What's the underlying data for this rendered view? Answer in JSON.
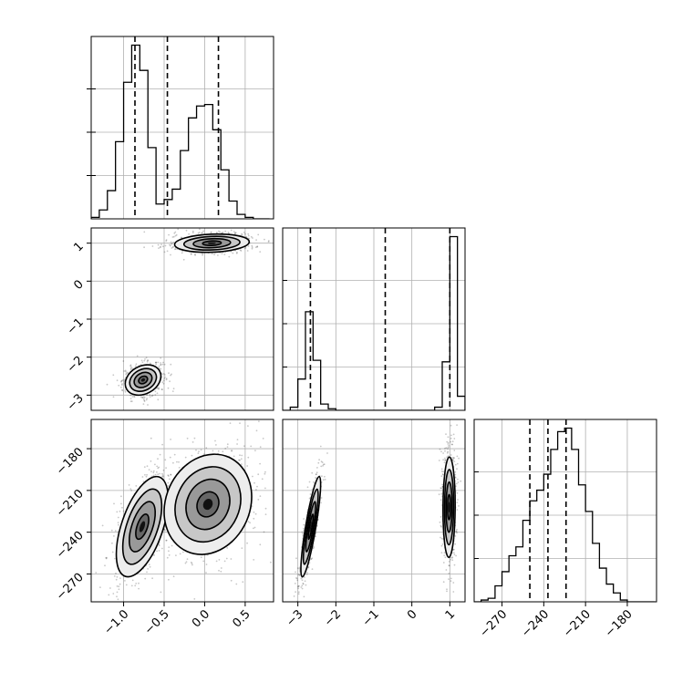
{
  "chart_data": {
    "type": "corner",
    "title": "",
    "grid": true,
    "colors": {
      "line": "#000000",
      "grid": "#b0b0b0",
      "density": "#000000"
    },
    "params": [
      {
        "label": "",
        "range": [
          -1.4,
          0.85
        ],
        "ticks": [
          -1.0,
          -0.5,
          0.0,
          0.5
        ],
        "tick_labels": [
          "−1.0",
          "−0.5",
          "0.0",
          "0.5"
        ],
        "quantiles": [
          -0.86,
          -0.46,
          0.17
        ]
      },
      {
        "label": "",
        "range": [
          -3.4,
          1.4
        ],
        "ticks": [
          -3,
          -2,
          -1,
          0,
          1
        ],
        "tick_labels": [
          "−3",
          "−2",
          "−1",
          "0",
          "1"
        ],
        "quantiles": [
          -2.67,
          -0.7,
          1.0
        ]
      },
      {
        "label": "",
        "range": [
          -290,
          -159
        ],
        "ticks": [
          -270,
          -240,
          -210,
          -180
        ],
        "tick_labels": [
          "−270",
          "−240",
          "−210",
          "−180"
        ],
        "quantiles": [
          -250,
          -237,
          -224
        ]
      }
    ],
    "histograms": [
      {
        "param": 0,
        "edges": [
          -1.4,
          -1.3,
          -1.2,
          -1.1,
          -1.0,
          -0.9,
          -0.8,
          -0.7,
          -0.6,
          -0.5,
          -0.4,
          -0.3,
          -0.2,
          -0.1,
          0.0,
          0.1,
          0.2,
          0.3,
          0.4,
          0.5,
          0.6,
          0.7,
          0.8
        ],
        "counts": [
          1,
          6,
          19,
          52,
          92,
          117,
          100,
          48,
          10,
          13,
          20,
          46,
          68,
          76,
          77,
          60,
          33,
          12,
          3,
          1,
          0,
          0
        ]
      },
      {
        "param": 1,
        "edges": [
          -3.4,
          -3.2,
          -3.0,
          -2.8,
          -2.6,
          -2.4,
          -2.2,
          -2.0,
          -1.8,
          -1.6,
          -1.4,
          -1.2,
          -1.0,
          -0.8,
          -0.6,
          -0.4,
          -0.2,
          0.0,
          0.2,
          0.4,
          0.6,
          0.8,
          1.0,
          1.2,
          1.4
        ],
        "counts": [
          0,
          2,
          20,
          63,
          32,
          4,
          1,
          0,
          0,
          0,
          0,
          0,
          0,
          0,
          0,
          0,
          0,
          0,
          0,
          0,
          2,
          31,
          111,
          9
        ]
      },
      {
        "param": 2,
        "edges": [
          -290,
          -285,
          -280,
          -275,
          -270,
          -265,
          -260,
          -255,
          -250,
          -245,
          -240,
          -235,
          -230,
          -225,
          -220,
          -215,
          -210,
          -205,
          -200,
          -195,
          -190,
          -185,
          -180,
          -175,
          -170,
          -165,
          -160
        ],
        "counts": [
          0,
          1,
          2,
          9,
          17,
          26,
          31,
          46,
          57,
          63,
          72,
          86,
          96,
          98,
          86,
          66,
          51,
          33,
          19,
          10,
          5,
          1,
          0,
          0,
          0,
          0
        ]
      }
    ],
    "joint": [
      {
        "x": 0,
        "y": 1,
        "modes": [
          {
            "cx": -0.76,
            "cy": -2.6,
            "sx": 0.11,
            "sy": 0.2,
            "rho": 0.25,
            "weight": 0.45
          },
          {
            "cx": 0.09,
            "cy": 1.0,
            "sx": 0.23,
            "sy": 0.12,
            "rho": 0.15,
            "weight": 0.55
          }
        ]
      },
      {
        "x": 0,
        "y": 2,
        "modes": [
          {
            "cx": -0.77,
            "cy": -236,
            "sx": 0.16,
            "sy": 18,
            "rho": 0.55,
            "weight": 0.45
          },
          {
            "cx": 0.04,
            "cy": -220,
            "sx": 0.27,
            "sy": 18,
            "rho": 0.15,
            "weight": 0.55
          }
        ]
      },
      {
        "x": 1,
        "y": 2,
        "modes": [
          {
            "cx": -2.66,
            "cy": -236,
            "sx": 0.13,
            "sy": 18,
            "rho": 0.85,
            "weight": 0.45
          },
          {
            "cx": 0.98,
            "cy": -222,
            "sx": 0.08,
            "sy": 18,
            "rho": 0.05,
            "weight": 0.55
          }
        ]
      }
    ]
  }
}
